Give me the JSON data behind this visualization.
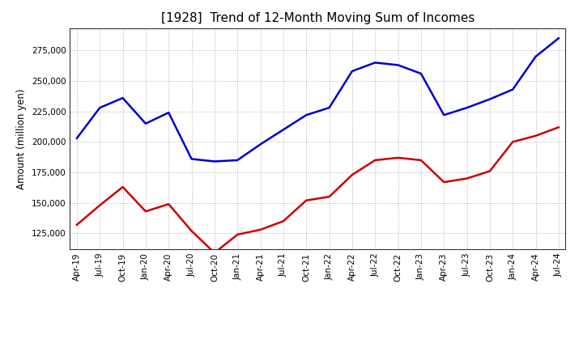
{
  "title": "[1928]  Trend of 12-Month Moving Sum of Incomes",
  "ylabel": "Amount (million yen)",
  "background_color": "#ffffff",
  "grid_color": "#aaaaaa",
  "plot_bg_color": "#ffffff",
  "ordinary_income_color": "#0000cc",
  "net_income_color": "#cc0000",
  "ylim": [
    112000,
    293000
  ],
  "yticks": [
    125000,
    150000,
    175000,
    200000,
    225000,
    250000,
    275000
  ],
  "dates": [
    "Apr-19",
    "Jul-19",
    "Oct-19",
    "Jan-20",
    "Apr-20",
    "Jul-20",
    "Oct-20",
    "Jan-21",
    "Apr-21",
    "Jul-21",
    "Oct-21",
    "Jan-22",
    "Apr-22",
    "Jul-22",
    "Oct-22",
    "Jan-23",
    "Apr-23",
    "Jul-23",
    "Oct-23",
    "Jan-24",
    "Apr-24",
    "Jul-24"
  ],
  "ordinary_income": [
    203000,
    228000,
    236000,
    215000,
    224000,
    186000,
    184000,
    185000,
    198000,
    210000,
    222000,
    228000,
    258000,
    265000,
    263000,
    256000,
    222000,
    228000,
    235000,
    243000,
    270000,
    285000
  ],
  "net_income": [
    132000,
    148000,
    163000,
    143000,
    149000,
    127000,
    109000,
    124000,
    128000,
    135000,
    152000,
    155000,
    173000,
    185000,
    187000,
    185000,
    167000,
    170000,
    176000,
    200000,
    205000,
    212000
  ],
  "title_fontsize": 11,
  "title_fontweight": "normal",
  "ylabel_fontsize": 8.5,
  "tick_fontsize": 7.5,
  "legend_fontsize": 8.5
}
